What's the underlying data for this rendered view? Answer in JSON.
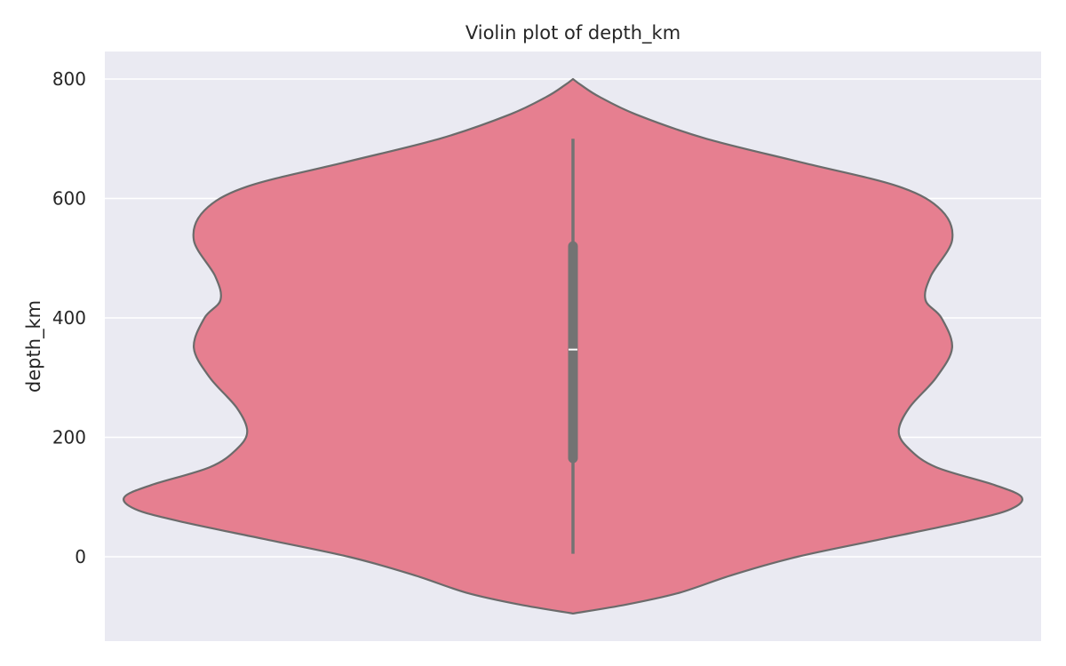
{
  "chart_data": {
    "type": "violin",
    "title": "Violin plot of depth_km",
    "ylabel": "depth_km",
    "xlabel": "",
    "ylim": [
      -140,
      845
    ],
    "yticks": [
      0,
      200,
      400,
      600,
      800
    ],
    "grid": true,
    "colors": {
      "violin_fill": "#e67f90",
      "violin_edge": "#6b6b6b",
      "box": "#737373",
      "median": "#ffffff",
      "plot_background": "#eaeaf2",
      "grid": "#ffffff"
    },
    "density_extent": [
      -95,
      800
    ],
    "density_profile": [
      [
        -95,
        0.0
      ],
      [
        -80,
        0.1
      ],
      [
        -60,
        0.2
      ],
      [
        -30,
        0.3
      ],
      [
        0,
        0.42
      ],
      [
        30,
        0.58
      ],
      [
        60,
        0.74
      ],
      [
        80,
        0.82
      ],
      [
        100,
        0.84
      ],
      [
        120,
        0.79
      ],
      [
        150,
        0.68
      ],
      [
        180,
        0.63
      ],
      [
        210,
        0.61
      ],
      [
        250,
        0.63
      ],
      [
        300,
        0.68
      ],
      [
        350,
        0.71
      ],
      [
        400,
        0.69
      ],
      [
        430,
        0.66
      ],
      [
        470,
        0.67
      ],
      [
        530,
        0.71
      ],
      [
        580,
        0.69
      ],
      [
        620,
        0.61
      ],
      [
        660,
        0.43
      ],
      [
        700,
        0.25
      ],
      [
        740,
        0.12
      ],
      [
        770,
        0.05
      ],
      [
        790,
        0.015
      ],
      [
        800,
        0.0
      ]
    ],
    "box": {
      "whisker_low": 5,
      "q1": 165,
      "median": 347,
      "q3": 520,
      "whisker_high": 700
    }
  }
}
